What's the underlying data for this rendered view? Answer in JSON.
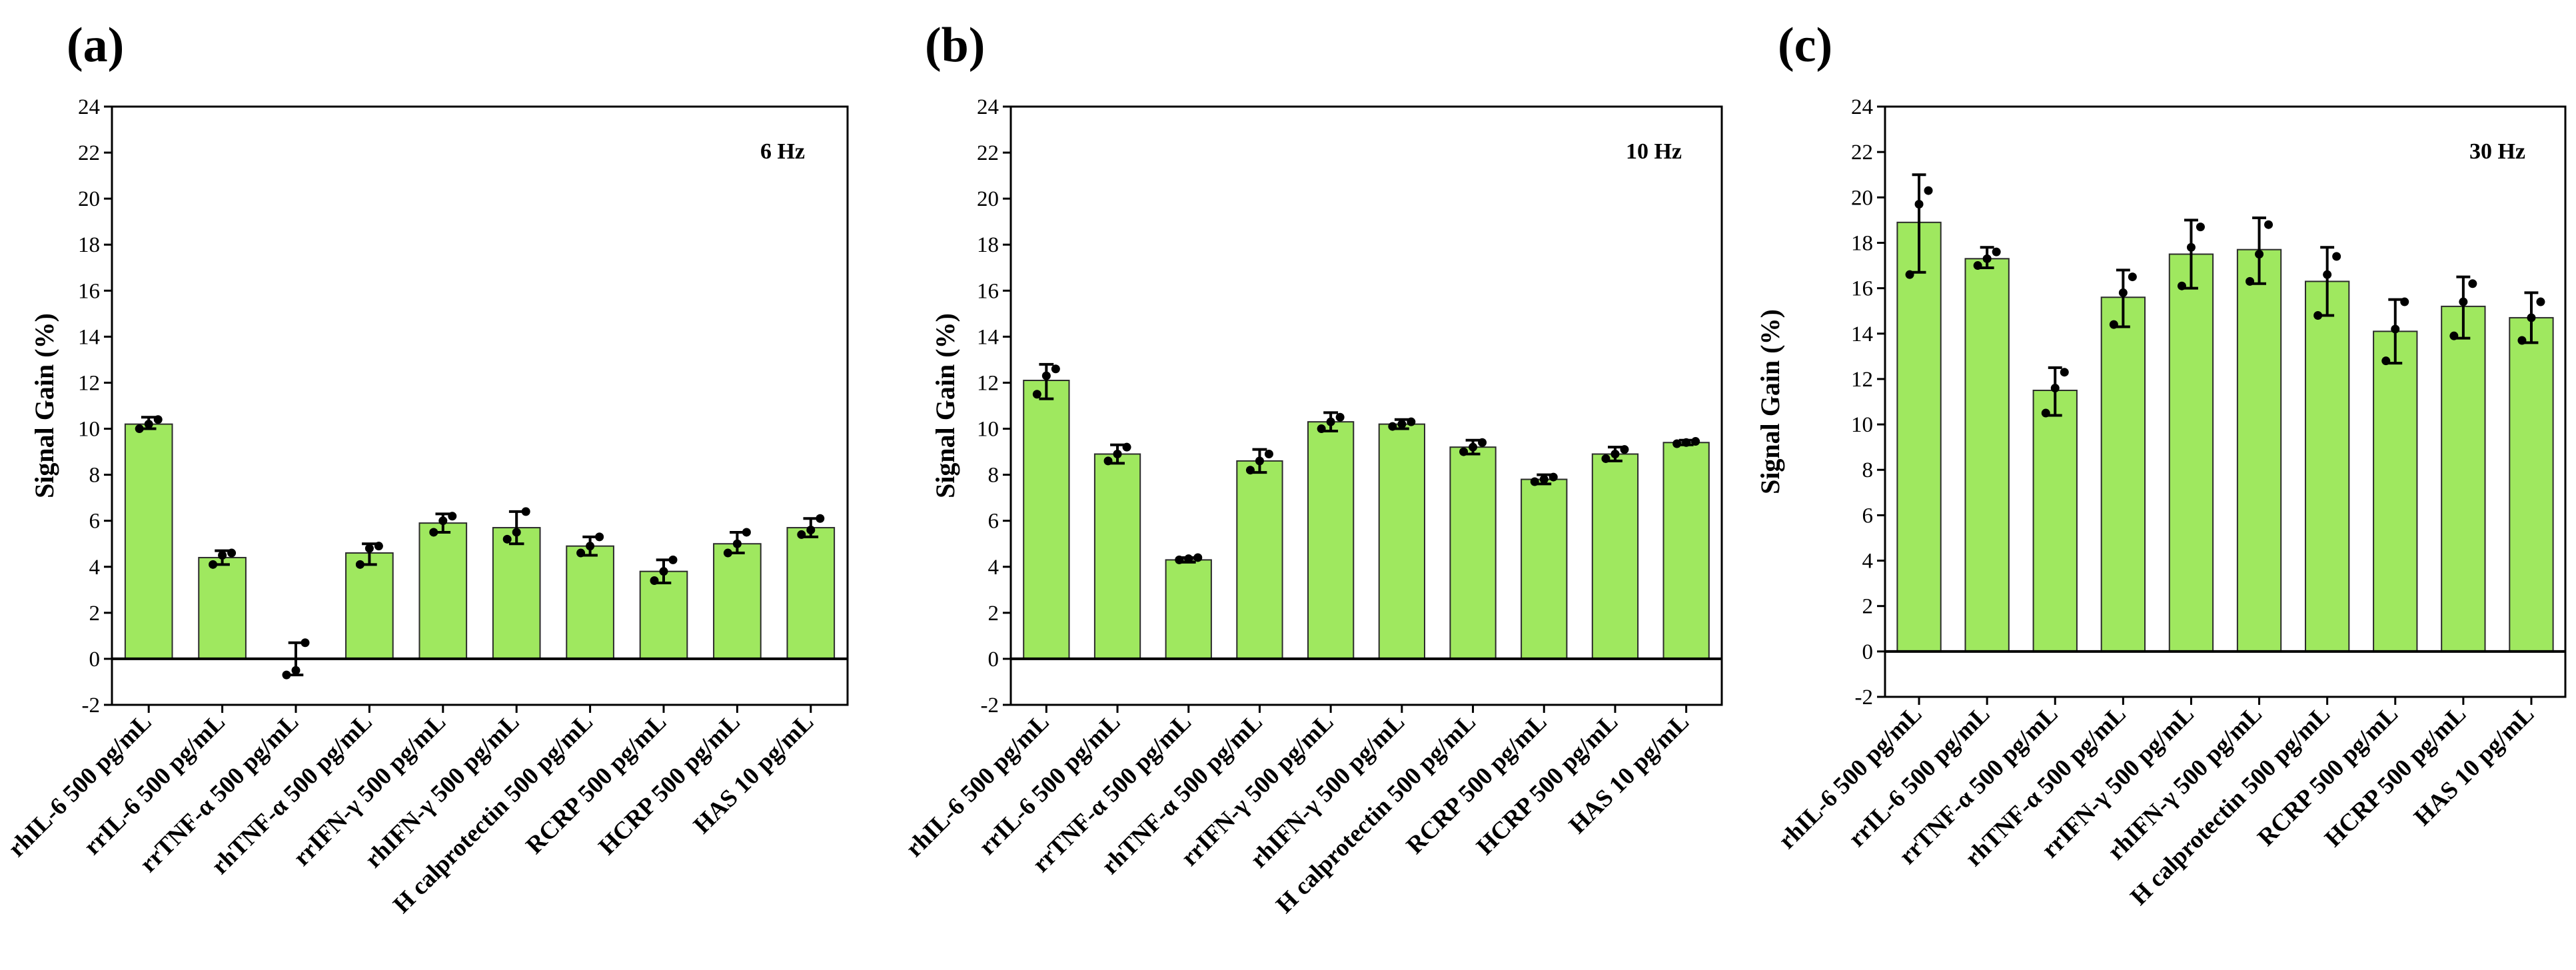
{
  "colors": {
    "bar_fill": "#9fe85f",
    "bar_stroke": "#2b2b2b",
    "axis": "#000000",
    "point": "#000000"
  },
  "chart_data": [
    {
      "type": "bar",
      "panel_label": "(a)",
      "annotation": "6 Hz",
      "ylabel": "Signal Gain (%)",
      "ylim": [
        -2,
        24
      ],
      "yticks": [
        -2,
        0,
        2,
        4,
        6,
        8,
        10,
        12,
        14,
        16,
        18,
        20,
        22,
        24
      ],
      "grid": false,
      "legend": "none",
      "categories": [
        "rhIL-6 500 pg/mL",
        "rrIL-6 500 pg/mL",
        "rrTNF-α 500 pg/mL",
        "rhTNF-α 500 pg/mL",
        "rrIFN-γ 500 pg/mL",
        "rhIFN-γ 500 pg/mL",
        "H calprotectin 500 pg/mL",
        "RCRP 500 pg/mL",
        "HCRP 500 pg/mL",
        "HAS 10 pg/mL"
      ],
      "values": [
        10.2,
        4.4,
        0.0,
        4.6,
        5.9,
        5.7,
        4.9,
        3.8,
        5.0,
        5.7
      ],
      "error_low": [
        10.0,
        4.1,
        -0.7,
        4.1,
        5.5,
        5.0,
        4.5,
        3.3,
        4.6,
        5.3
      ],
      "error_high": [
        10.5,
        4.7,
        0.7,
        5.0,
        6.3,
        6.4,
        5.3,
        4.3,
        5.5,
        6.1
      ],
      "points": [
        [
          10.0,
          10.2,
          10.4
        ],
        [
          4.1,
          4.5,
          4.6
        ],
        [
          -0.7,
          -0.5,
          0.7
        ],
        [
          4.1,
          4.8,
          4.9
        ],
        [
          5.5,
          6.0,
          6.2
        ],
        [
          5.2,
          5.5,
          6.4
        ],
        [
          4.6,
          4.9,
          5.3
        ],
        [
          3.4,
          3.8,
          4.3
        ],
        [
          4.6,
          5.0,
          5.5
        ],
        [
          5.4,
          5.6,
          6.1
        ]
      ]
    },
    {
      "type": "bar",
      "panel_label": "(b)",
      "annotation": "10 Hz",
      "ylabel": "Signal Gain (%)",
      "ylim": [
        -2,
        24
      ],
      "yticks": [
        -2,
        0,
        2,
        4,
        6,
        8,
        10,
        12,
        14,
        16,
        18,
        20,
        22,
        24
      ],
      "grid": false,
      "legend": "none",
      "categories": [
        "rhIL-6 500 pg/mL",
        "rrIL-6 500 pg/mL",
        "rrTNF-α 500 pg/mL",
        "rhTNF-α 500 pg/mL",
        "rrIFN-γ 500 pg/mL",
        "rhIFN-γ 500 pg/mL",
        "H calprotectin 500 pg/mL",
        "RCRP 500 pg/mL",
        "HCRP 500 pg/mL",
        "HAS 10 pg/mL"
      ],
      "values": [
        12.1,
        8.9,
        4.3,
        8.6,
        10.3,
        10.2,
        9.2,
        7.8,
        8.9,
        9.4
      ],
      "error_low": [
        11.3,
        8.5,
        4.2,
        8.1,
        9.9,
        10.0,
        8.9,
        7.6,
        8.6,
        9.3
      ],
      "error_high": [
        12.8,
        9.3,
        4.4,
        9.1,
        10.7,
        10.4,
        9.5,
        8.0,
        9.2,
        9.5
      ],
      "points": [
        [
          11.5,
          12.3,
          12.6
        ],
        [
          8.6,
          8.9,
          9.2
        ],
        [
          4.3,
          4.35,
          4.4
        ],
        [
          8.2,
          8.6,
          8.9
        ],
        [
          10.0,
          10.3,
          10.5
        ],
        [
          10.1,
          10.2,
          10.3
        ],
        [
          9.0,
          9.2,
          9.4
        ],
        [
          7.7,
          7.8,
          7.9
        ],
        [
          8.7,
          8.9,
          9.1
        ],
        [
          9.35,
          9.4,
          9.45
        ]
      ]
    },
    {
      "type": "bar",
      "panel_label": "(c)",
      "annotation": "30 Hz",
      "ylabel": "Signal Gain (%)",
      "ylim": [
        -2,
        24
      ],
      "yticks": [
        -2,
        0,
        2,
        4,
        6,
        8,
        10,
        12,
        14,
        16,
        18,
        20,
        22,
        24
      ],
      "grid": false,
      "legend": "none",
      "categories": [
        "rhIL-6 500 pg/mL",
        "rrIL-6 500 pg/mL",
        "rrTNF-α 500 pg/mL",
        "rhTNF-α 500 pg/mL",
        "rrIFN-γ 500 pg/mL",
        "rhIFN-γ 500 pg/mL",
        "H calprotectin 500 pg/mL",
        "RCRP 500 pg/mL",
        "HCRP 500 pg/mL",
        "HAS 10 pg/mL"
      ],
      "values": [
        18.9,
        17.3,
        11.5,
        15.6,
        17.5,
        17.7,
        16.3,
        14.1,
        15.2,
        14.7
      ],
      "error_low": [
        16.7,
        16.9,
        10.4,
        14.3,
        16.0,
        16.2,
        14.8,
        12.7,
        13.8,
        13.6
      ],
      "error_high": [
        21.0,
        17.8,
        12.5,
        16.8,
        19.0,
        19.1,
        17.8,
        15.5,
        16.5,
        15.8
      ],
      "points": [
        [
          16.6,
          19.7,
          20.3
        ],
        [
          17.0,
          17.3,
          17.6
        ],
        [
          10.5,
          11.6,
          12.3
        ],
        [
          14.4,
          15.8,
          16.5
        ],
        [
          16.1,
          17.8,
          18.7
        ],
        [
          16.3,
          17.5,
          18.8
        ],
        [
          14.8,
          16.6,
          17.4
        ],
        [
          12.8,
          14.2,
          15.4
        ],
        [
          13.9,
          15.4,
          16.2
        ],
        [
          13.7,
          14.7,
          15.4
        ]
      ]
    }
  ]
}
